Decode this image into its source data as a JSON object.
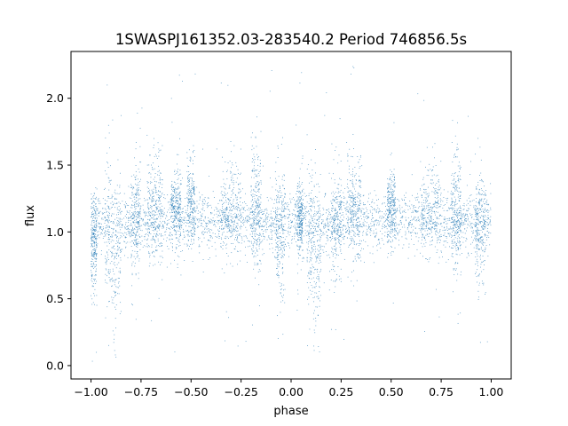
{
  "chart_data": {
    "type": "scatter",
    "title": "1SWASPJ161352.03-283540.2 Period 746856.5s",
    "xlabel": "phase",
    "ylabel": "flux",
    "xlim": [
      -1.1,
      1.1
    ],
    "ylim": [
      -0.1,
      2.35
    ],
    "xticks": [
      -1.0,
      -0.75,
      -0.5,
      -0.25,
      0.0,
      0.25,
      0.5,
      0.75,
      1.0
    ],
    "xtick_labels": [
      "−1.00",
      "−0.75",
      "−0.50",
      "−0.25",
      "0.00",
      "0.25",
      "0.50",
      "0.75",
      "1.00"
    ],
    "yticks": [
      0.0,
      0.5,
      1.0,
      1.5,
      2.0
    ],
    "ytick_labels": [
      "0.0",
      "0.5",
      "1.0",
      "1.5",
      "2.0"
    ],
    "grid": false,
    "marker_color": "#1f77b4",
    "series": [
      {
        "point_count": 7000,
        "x_range": [
          -1.0,
          1.0
        ],
        "flux_median": 1.08,
        "flux_core_range": [
          0.85,
          1.35
        ],
        "flux_extreme_range": [
          0.0,
          2.25
        ],
        "periodic_in_phase": true,
        "dip_phases": [
          -0.88,
          0.12
        ],
        "dip_min_flux": 0.4,
        "scatter_clusters": [
          {
            "phase_range": [
              -1.0,
              -0.97
            ],
            "flux_range": [
              0.5,
              1.3
            ]
          },
          {
            "phase_range": [
              -0.93,
              -0.85
            ],
            "flux_range": [
              0.4,
              1.6
            ]
          },
          {
            "phase_range": [
              -0.8,
              -0.75
            ],
            "flux_range": [
              0.6,
              1.6
            ]
          },
          {
            "phase_range": [
              -0.72,
              -0.64
            ],
            "flux_range": [
              0.7,
              1.7
            ]
          },
          {
            "phase_range": [
              -0.6,
              -0.55
            ],
            "flux_range": [
              0.9,
              1.5
            ]
          },
          {
            "phase_range": [
              -0.52,
              -0.48
            ],
            "flux_range": [
              0.9,
              1.6
            ]
          },
          {
            "phase_range": [
              -0.35,
              -0.25
            ],
            "flux_range": [
              0.8,
              1.6
            ]
          },
          {
            "phase_range": [
              -0.2,
              -0.15
            ],
            "flux_range": [
              0.6,
              1.7
            ]
          },
          {
            "phase_range": [
              -0.08,
              -0.03
            ],
            "flux_range": [
              0.5,
              1.5
            ]
          },
          {
            "phase_range": [
              0.03,
              0.06
            ],
            "flux_range": [
              0.8,
              1.4
            ]
          },
          {
            "phase_range": [
              0.08,
              0.15
            ],
            "flux_range": [
              0.4,
              1.6
            ]
          },
          {
            "phase_range": [
              0.2,
              0.25
            ],
            "flux_range": [
              0.6,
              1.5
            ]
          },
          {
            "phase_range": [
              0.28,
              0.35
            ],
            "flux_range": [
              0.7,
              1.6
            ]
          },
          {
            "phase_range": [
              0.48,
              0.52
            ],
            "flux_range": [
              0.9,
              1.5
            ]
          },
          {
            "phase_range": [
              0.65,
              0.75
            ],
            "flux_range": [
              0.8,
              1.6
            ]
          },
          {
            "phase_range": [
              0.8,
              0.85
            ],
            "flux_range": [
              0.6,
              1.7
            ]
          },
          {
            "phase_range": [
              0.92,
              0.97
            ],
            "flux_range": [
              0.5,
              1.5
            ]
          }
        ]
      }
    ]
  }
}
